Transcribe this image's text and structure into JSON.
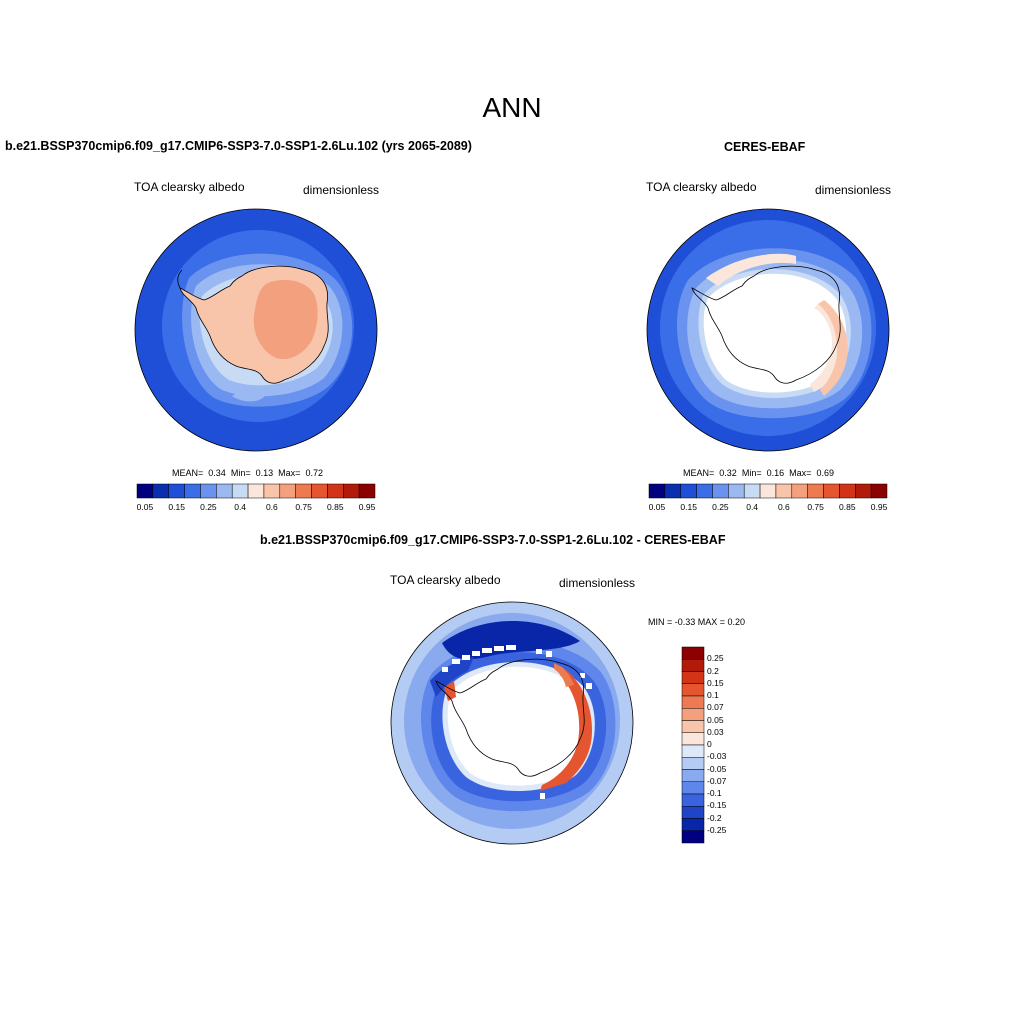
{
  "page": {
    "title": "ANN"
  },
  "panels": [
    {
      "id": "model",
      "title": "b.e21.BSSP370cmip6.f09_g17.CMIP6-SSP3-7.0-SSP1-2.6Lu.102 (yrs 2065-2089)",
      "left_label": "TOA clearsky albedo",
      "right_label": "dimensionless",
      "stats": {
        "mean_label": "MEAN=",
        "mean": "0.34",
        "min_label": "Min=",
        "min": "0.13",
        "max_label": "Max=",
        "max": "0.72"
      }
    },
    {
      "id": "obs",
      "title": "CERES-EBAF",
      "left_label": "TOA clearsky albedo",
      "right_label": "dimensionless",
      "stats": {
        "mean_label": "MEAN=",
        "mean": "0.32",
        "min_label": "Min=",
        "min": "0.16",
        "max_label": "Max=",
        "max": "0.69"
      }
    },
    {
      "id": "diff",
      "title": "b.e21.BSSP370cmip6.f09_g17.CMIP6-SSP3-7.0-SSP1-2.6Lu.102 - CERES-EBAF",
      "left_label": "TOA clearsky albedo",
      "right_label": "dimensionless",
      "stats_text": "MIN =  -0.33 MAX =   0.20"
    }
  ],
  "albedo_colorbar": {
    "colors": [
      "#000080",
      "#0a2eb0",
      "#1f4fd6",
      "#3a6ee8",
      "#6a93ef",
      "#9ab8f2",
      "#c8dbf5",
      "#fbe6dc",
      "#f8c4aa",
      "#f3a07e",
      "#ee7a52",
      "#e55530",
      "#d23418",
      "#b21a0c",
      "#8b0000"
    ],
    "labels": [
      "0.05",
      "0.15",
      "0.25",
      "0.4",
      "0.6",
      "0.75",
      "0.85",
      "0.95"
    ]
  },
  "diff_colorbar": {
    "colors": [
      "#8b0000",
      "#b21a0c",
      "#d23418",
      "#e55530",
      "#ee7a52",
      "#f3a07e",
      "#f8c4aa",
      "#fbe6dc",
      "#dde9f8",
      "#b4cbf3",
      "#8aaaef",
      "#5f86ea",
      "#3a63e0",
      "#1f44c8",
      "#0a26a8",
      "#000080"
    ],
    "labels": [
      "0.25",
      "0.2",
      "0.15",
      "0.1",
      "0.07",
      "0.05",
      "0.03",
      "0",
      "-0.03",
      "-0.05",
      "-0.07",
      "-0.1",
      "-0.15",
      "-0.2",
      "-0.25"
    ]
  },
  "map_palette": {
    "ocean_dark": "#1f4fd6",
    "ocean_mid": "#3a6ee8",
    "ocean_light": "#6a93ef",
    "ice_light": "#9ab8f2",
    "ice_pale": "#c8dbf5",
    "land": "#f8c4aa",
    "land_high": "#f3a07e",
    "white": "#ffffff",
    "diff_dark": "#0a26a8",
    "diff_red": "#e55530",
    "diff_orange": "#ee7a52"
  }
}
